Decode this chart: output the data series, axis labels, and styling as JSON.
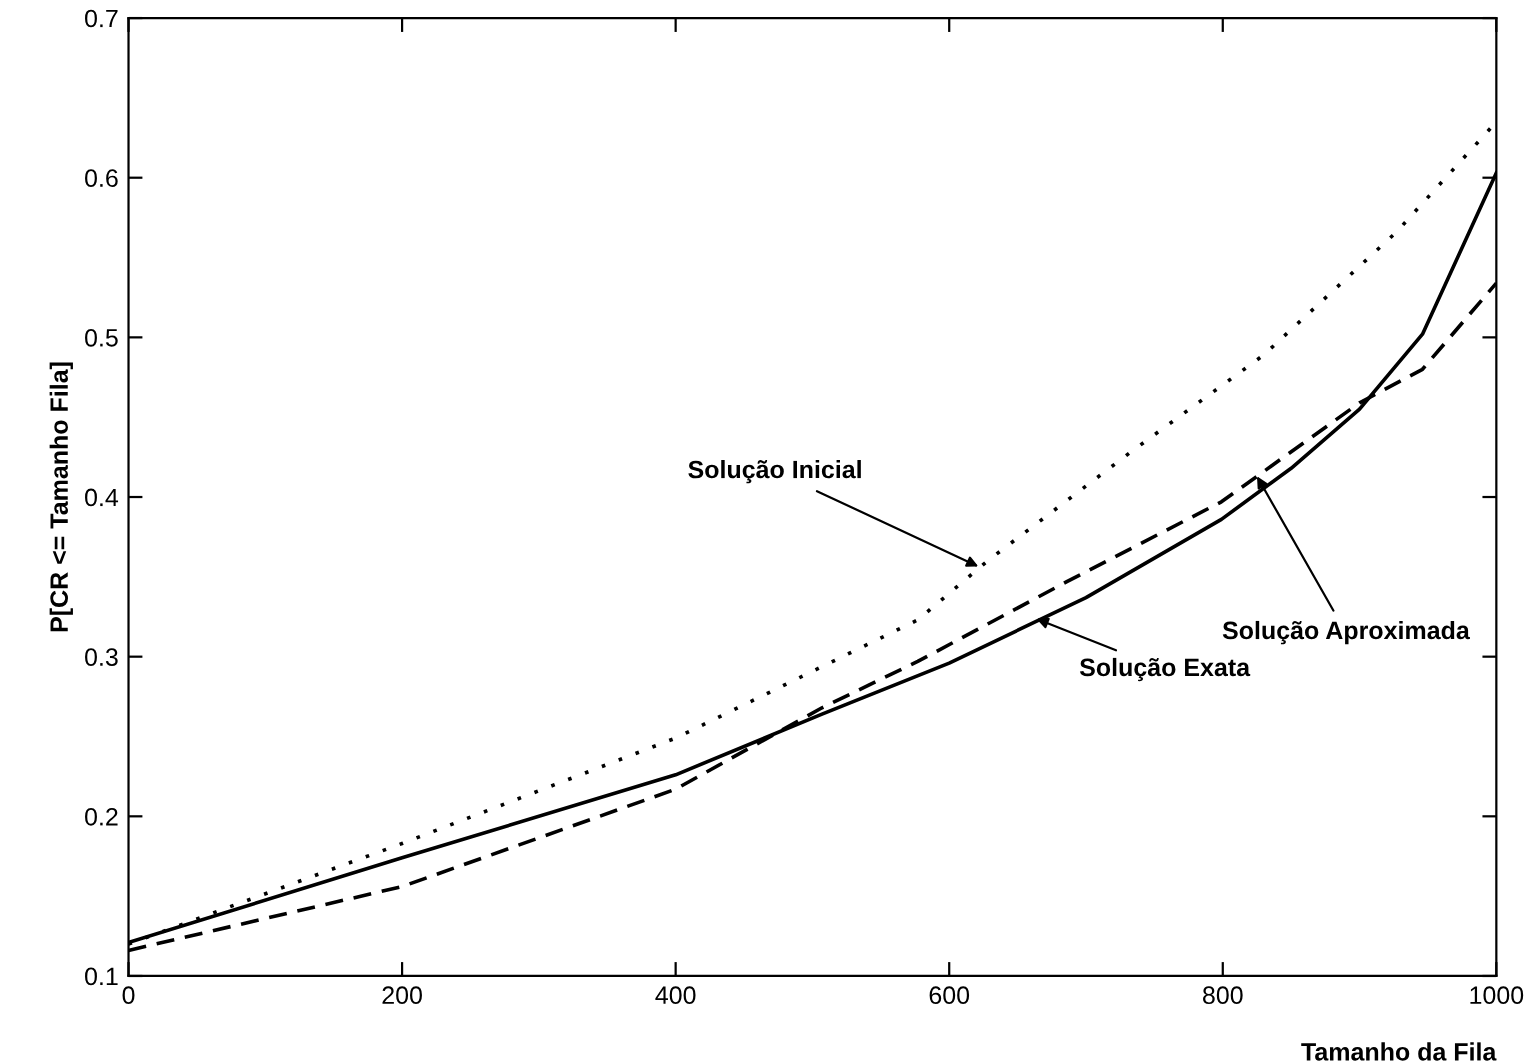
{
  "chart_data": {
    "type": "line",
    "xlabel": "Tamanho da Fila",
    "ylabel": "P[CR <= Tamanho Fila]",
    "xlim": [
      0,
      1000
    ],
    "ylim": [
      0.1,
      0.7
    ],
    "xticks": [
      0,
      200,
      400,
      600,
      800,
      1000
    ],
    "yticks": [
      0.1,
      0.2,
      0.3,
      0.4,
      0.5,
      0.6,
      0.7
    ],
    "grid": false,
    "legend": false,
    "series": [
      {
        "color": "#000000",
        "line_style": "solid",
        "x": [
          0,
          200,
          400,
          507,
          600,
          700,
          799,
          850,
          900,
          946,
          1000
        ],
        "values": [
          0.121,
          0.174,
          0.226,
          0.264,
          0.296,
          0.337,
          0.386,
          0.418,
          0.455,
          0.502,
          0.603
        ]
      },
      {
        "color": "#000000",
        "line_style": "dashed",
        "x": [
          0,
          200,
          400,
          507,
          577,
          686,
          799,
          900,
          946,
          1000
        ],
        "values": [
          0.116,
          0.156,
          0.217,
          0.268,
          0.297,
          0.347,
          0.397,
          0.459,
          0.48,
          0.534
        ]
      },
      {
        "color": "#000000",
        "line_style": "dotted",
        "x": [
          0,
          200,
          400,
          577,
          628,
          734,
          830,
          927,
          1000
        ],
        "values": [
          0.12,
          0.183,
          0.249,
          0.323,
          0.36,
          0.429,
          0.489,
          0.566,
          0.635
        ]
      }
    ],
    "annotations": [
      {
        "text": "Solução Inicial",
        "x": 625,
        "y": 0.355
      },
      {
        "text": "Solução Aproximada",
        "x": 823,
        "y": 0.416
      },
      {
        "text": "Solução Exata",
        "x": 660,
        "y": 0.325
      }
    ]
  }
}
